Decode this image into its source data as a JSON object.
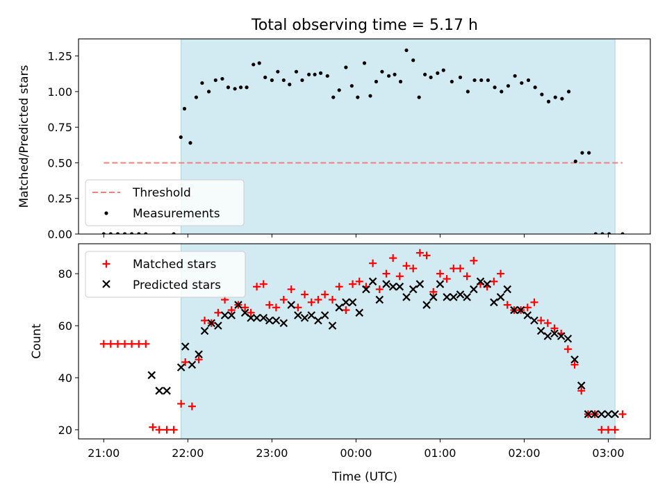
{
  "chart_data": {
    "title": "Total observing time = 5.17 h",
    "xlabel": "Time (UTC)",
    "x_unit": "hours after 21:00 UTC",
    "xlim": [
      -0.3,
      6.5
    ],
    "x_ticks": [
      0,
      1,
      2,
      3,
      4,
      5,
      6
    ],
    "x_tick_labels": [
      "21:00",
      "22:00",
      "23:00",
      "00:00",
      "01:00",
      "02:00",
      "03:00"
    ],
    "observing_window": [
      0.92,
      6.08
    ],
    "window_color": "#d2eaf1",
    "panels": [
      {
        "type": "scatter",
        "ylabel": "Matched/Predicted stars",
        "ylim": [
          0,
          1.37
        ],
        "y_ticks": [
          0,
          0.25,
          0.5,
          0.75,
          1.0,
          1.25
        ],
        "y_tick_labels": [
          "0.00",
          "0.25",
          "0.50",
          "0.75",
          "1.00",
          "1.25"
        ],
        "legend_position": "lower-left",
        "threshold": {
          "name": "Threshold",
          "value": 0.5,
          "x_range": [
            0,
            6.17
          ],
          "color": "#f08080"
        },
        "series": [
          {
            "name": "Measurements",
            "color": "#000000",
            "x": [
              0.0,
              0.083,
              0.167,
              0.25,
              0.333,
              0.417,
              0.5,
              0.833,
              0.917,
              0.96,
              1.03,
              1.1,
              1.17,
              1.25,
              1.33,
              1.41,
              1.48,
              1.56,
              1.63,
              1.7,
              1.78,
              1.85,
              1.92,
              2.0,
              2.07,
              2.14,
              2.21,
              2.29,
              2.36,
              2.44,
              2.51,
              2.58,
              2.66,
              2.73,
              2.8,
              2.88,
              2.95,
              3.02,
              3.1,
              3.17,
              3.24,
              3.31,
              3.39,
              3.46,
              3.53,
              3.6,
              3.68,
              3.75,
              3.82,
              3.89,
              3.97,
              4.04,
              4.14,
              4.24,
              4.33,
              4.41,
              4.49,
              4.57,
              4.65,
              4.73,
              4.81,
              4.89,
              4.97,
              5.05,
              5.13,
              5.21,
              5.29,
              5.37,
              5.45,
              5.53,
              5.61,
              5.69,
              5.77,
              5.85,
              5.93,
              6.01,
              6.17
            ],
            "y": [
              0.0,
              0.0,
              0.0,
              0.0,
              0.0,
              0.0,
              0.0,
              0.0,
              0.68,
              0.88,
              0.64,
              0.96,
              1.06,
              1.0,
              1.08,
              1.09,
              1.03,
              1.02,
              1.03,
              1.03,
              1.19,
              1.2,
              1.1,
              1.08,
              1.14,
              1.08,
              1.05,
              1.14,
              1.08,
              1.12,
              1.12,
              1.13,
              1.11,
              0.96,
              1.01,
              1.17,
              1.04,
              0.96,
              1.2,
              0.97,
              1.07,
              1.14,
              1.11,
              1.12,
              1.07,
              1.29,
              1.22,
              0.96,
              1.12,
              1.1,
              1.13,
              1.15,
              1.07,
              1.1,
              1.0,
              1.08,
              1.08,
              1.08,
              1.03,
              1.0,
              1.04,
              1.11,
              1.06,
              1.08,
              1.03,
              0.98,
              0.93,
              0.96,
              0.95,
              1.0,
              0.51,
              0.57,
              0.57,
              0.0,
              0.0,
              0.0,
              0.0
            ],
            "note": "x/y arrays listed in plotted order"
          }
        ]
      },
      {
        "type": "scatter",
        "ylabel": "Count",
        "ylim": [
          16.5,
          91.5
        ],
        "y_ticks": [
          20,
          40,
          60,
          80
        ],
        "y_tick_labels": [
          "20",
          "40",
          "60",
          "80"
        ],
        "legend_position": "top-left",
        "series": [
          {
            "name": "Matched stars",
            "marker": "+",
            "color": "#ff0000",
            "x": [
              0.0,
              0.083,
              0.167,
              0.25,
              0.333,
              0.417,
              0.5,
              0.583,
              0.66,
              0.75,
              0.833,
              0.92,
              0.97,
              1.05,
              1.13,
              1.2,
              1.28,
              1.36,
              1.44,
              1.52,
              1.6,
              1.68,
              1.75,
              1.82,
              1.9,
              1.97,
              2.05,
              2.14,
              2.23,
              2.31,
              2.39,
              2.47,
              2.55,
              2.63,
              2.72,
              2.8,
              2.88,
              2.96,
              3.04,
              3.12,
              3.2,
              3.28,
              3.36,
              3.44,
              3.52,
              3.6,
              3.68,
              3.76,
              3.84,
              3.92,
              4.0,
              4.08,
              4.16,
              4.24,
              4.32,
              4.4,
              4.48,
              4.56,
              4.64,
              4.72,
              4.8,
              4.88,
              4.96,
              5.04,
              5.12,
              5.2,
              5.28,
              5.36,
              5.44,
              5.52,
              5.6,
              5.68,
              5.76,
              5.84,
              5.92,
              6.0,
              6.08,
              6.17
            ],
            "y": [
              53,
              53,
              53,
              53,
              53,
              53,
              53,
              21,
              20,
              20,
              20,
              30,
              46,
              29,
              47,
              62,
              61,
              65,
              70,
              66,
              68,
              67,
              65,
              75,
              76,
              68,
              67,
              70,
              74,
              67,
              72,
              69,
              70,
              72,
              70,
              75,
              66,
              76,
              77,
              75,
              84,
              74,
              80,
              86,
              79,
              83,
              82,
              88,
              87,
              73,
              80,
              78,
              82,
              82,
              79,
              85,
              76,
              75,
              77,
              80,
              68,
              66,
              66,
              67,
              69,
              62,
              61,
              59,
              57,
              51,
              45,
              35,
              26,
              26,
              20,
              20,
              20,
              26
            ],
            "note": "x/y arrays listed in plotted order"
          },
          {
            "name": "Predicted stars",
            "marker": "x",
            "color": "#000000",
            "x": [
              0.57,
              0.66,
              0.75,
              0.92,
              0.97,
              1.05,
              1.13,
              1.2,
              1.28,
              1.36,
              1.44,
              1.52,
              1.6,
              1.68,
              1.75,
              1.82,
              1.9,
              1.97,
              2.05,
              2.14,
              2.23,
              2.31,
              2.39,
              2.47,
              2.55,
              2.63,
              2.72,
              2.8,
              2.88,
              2.96,
              3.04,
              3.12,
              3.2,
              3.28,
              3.36,
              3.44,
              3.52,
              3.6,
              3.68,
              3.76,
              3.84,
              3.92,
              4.0,
              4.08,
              4.16,
              4.24,
              4.32,
              4.4,
              4.48,
              4.56,
              4.64,
              4.72,
              4.8,
              4.88,
              4.96,
              5.04,
              5.12,
              5.2,
              5.28,
              5.36,
              5.44,
              5.52,
              5.6,
              5.68,
              5.76,
              5.84,
              5.92,
              6.0,
              6.08
            ],
            "y": [
              41,
              35,
              35,
              44,
              52,
              45,
              49,
              58,
              61,
              60,
              64,
              64,
              68,
              65,
              63,
              63,
              63,
              62,
              62,
              61,
              68,
              64,
              63,
              64,
              62,
              64,
              60,
              67,
              69,
              69,
              65,
              74,
              77,
              70,
              76,
              75,
              75,
              71,
              74,
              76,
              68,
              71,
              76,
              71,
              71,
              72,
              71,
              74,
              77,
              76,
              69,
              71,
              74,
              66,
              66,
              64,
              62,
              58,
              56,
              57,
              56,
              55,
              47,
              37,
              26,
              26,
              26,
              26,
              26
            ],
            "note": "x/y arrays listed in plotted order"
          }
        ]
      }
    ]
  }
}
